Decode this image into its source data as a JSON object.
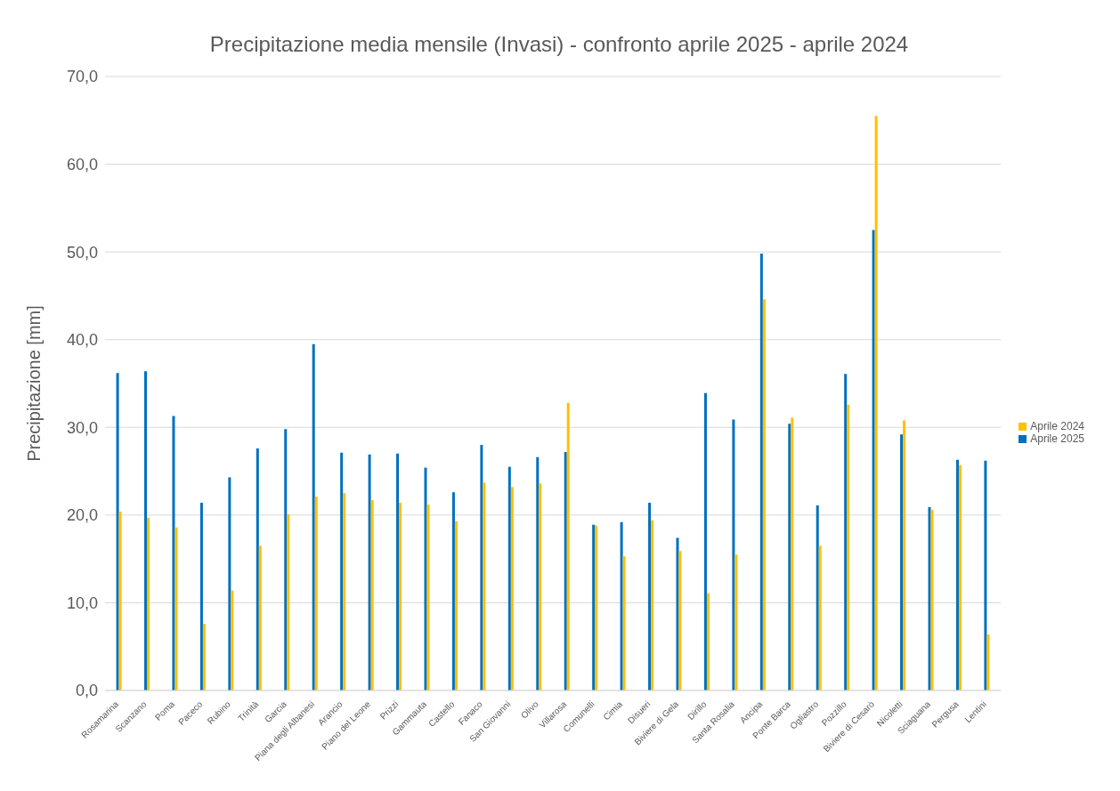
{
  "chart_data": {
    "type": "bar",
    "title": "Precipitazione media mensile (Invasi) - confronto aprile 2025 - aprile 2024",
    "ylabel": "Precipitazione [mm]",
    "categories": [
      "Rosamarina",
      "Scanzano",
      "Poma",
      "Paceco",
      "Rubino",
      "Trinità",
      "Garcia",
      "Piana degli Albanesi",
      "Arancio",
      "Piano del Leone",
      "Prizzi",
      "Gammauta",
      "Castello",
      "Fanaco",
      "San Giovanni",
      "Olivo",
      "Villarosa",
      "Comunelli",
      "Cimia",
      "Disueri",
      "Biviere di Gela",
      "Dirillo",
      "Santa Rosalia",
      "Ancipa",
      "Ponte Barca",
      "Ogliastro",
      "Pozzillo",
      "Biviere di Cesarò",
      "Nicoletti",
      "Sciaguana",
      "Pergusa",
      "Lentini"
    ],
    "series": [
      {
        "name": "Aprile 2025",
        "color": "#0070c0",
        "values": [
          36.2,
          36.4,
          31.3,
          21.4,
          24.3,
          27.6,
          29.8,
          39.5,
          27.1,
          26.9,
          27.0,
          25.4,
          22.6,
          28.0,
          25.5,
          26.6,
          27.2,
          18.9,
          19.2,
          21.4,
          17.4,
          33.9,
          30.9,
          49.8,
          30.4,
          21.1,
          36.1,
          52.5,
          29.2,
          20.9,
          26.3,
          26.2
        ]
      },
      {
        "name": "Aprile 2024",
        "color": "#ffc000",
        "values": [
          20.4,
          19.7,
          18.6,
          7.6,
          11.4,
          16.5,
          20.1,
          22.1,
          22.5,
          21.7,
          21.4,
          21.2,
          19.3,
          23.7,
          23.2,
          23.6,
          32.8,
          18.8,
          15.3,
          19.4,
          15.9,
          11.1,
          15.5,
          44.6,
          31.1,
          16.5,
          32.6,
          65.5,
          30.8,
          20.6,
          25.7,
          6.4
        ]
      }
    ],
    "ylim": [
      0,
      70
    ],
    "yticks": [
      {
        "value": 0,
        "label": "0,0"
      },
      {
        "value": 10,
        "label": "10,0"
      },
      {
        "value": 20,
        "label": "20,0"
      },
      {
        "value": 30,
        "label": "30,0"
      },
      {
        "value": 40,
        "label": "40,0"
      },
      {
        "value": 50,
        "label": "50,0"
      },
      {
        "value": 60,
        "label": "60,0"
      },
      {
        "value": 70,
        "label": "70,0"
      }
    ],
    "grid": "y",
    "legend": "right"
  }
}
